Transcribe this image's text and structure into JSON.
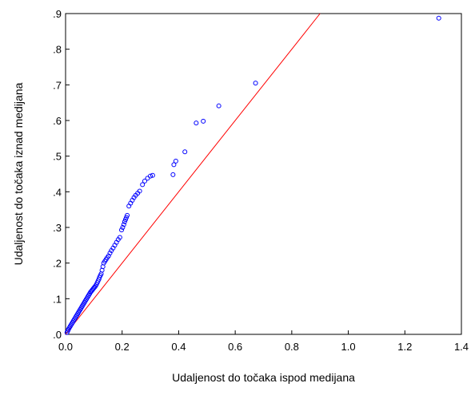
{
  "chart_data": {
    "type": "scatter",
    "title": "",
    "xlabel": "Udaljenost do točaka ispod medijana",
    "ylabel": "Udaljenost do točaka iznad medijana",
    "xlim": [
      0.0,
      1.4
    ],
    "ylim": [
      0.0,
      0.9
    ],
    "xticks": [
      {
        "value": 0.0,
        "label": "0.0"
      },
      {
        "value": 0.2,
        "label": "0.2"
      },
      {
        "value": 0.4,
        "label": "0.4"
      },
      {
        "value": 0.6,
        "label": "0.6"
      },
      {
        "value": 0.8,
        "label": "0.8"
      },
      {
        "value": 1.0,
        "label": "1.0"
      },
      {
        "value": 1.2,
        "label": "1.2"
      },
      {
        "value": 1.4,
        "label": "1.4"
      }
    ],
    "yticks": [
      {
        "value": 0.0,
        "label": ".0"
      },
      {
        "value": 0.1,
        "label": ".1"
      },
      {
        "value": 0.2,
        "label": ".2"
      },
      {
        "value": 0.3,
        "label": ".3"
      },
      {
        "value": 0.4,
        "label": ".4"
      },
      {
        "value": 0.5,
        "label": ".5"
      },
      {
        "value": 0.6,
        "label": ".6"
      },
      {
        "value": 0.7,
        "label": ".7"
      },
      {
        "value": 0.8,
        "label": ".8"
      },
      {
        "value": 0.9,
        "label": ".9"
      }
    ],
    "grid": false,
    "reference_line": {
      "from": [
        0.0,
        0.0
      ],
      "to": [
        0.9,
        0.9
      ],
      "color": "#ff0000"
    },
    "marker_color": "#0000ff",
    "points": [
      [
        0.005,
        0.005
      ],
      [
        0.008,
        0.01
      ],
      [
        0.01,
        0.014
      ],
      [
        0.013,
        0.018
      ],
      [
        0.016,
        0.022
      ],
      [
        0.019,
        0.026
      ],
      [
        0.022,
        0.03
      ],
      [
        0.025,
        0.034
      ],
      [
        0.028,
        0.038
      ],
      [
        0.031,
        0.042
      ],
      [
        0.034,
        0.046
      ],
      [
        0.037,
        0.05
      ],
      [
        0.04,
        0.054
      ],
      [
        0.043,
        0.058
      ],
      [
        0.046,
        0.062
      ],
      [
        0.049,
        0.066
      ],
      [
        0.052,
        0.07
      ],
      [
        0.055,
        0.074
      ],
      [
        0.058,
        0.078
      ],
      [
        0.061,
        0.082
      ],
      [
        0.064,
        0.086
      ],
      [
        0.067,
        0.09
      ],
      [
        0.07,
        0.094
      ],
      [
        0.073,
        0.098
      ],
      [
        0.076,
        0.102
      ],
      [
        0.079,
        0.106
      ],
      [
        0.082,
        0.11
      ],
      [
        0.085,
        0.114
      ],
      [
        0.088,
        0.118
      ],
      [
        0.091,
        0.121
      ],
      [
        0.094,
        0.124
      ],
      [
        0.097,
        0.127
      ],
      [
        0.1,
        0.13
      ],
      [
        0.103,
        0.133
      ],
      [
        0.106,
        0.136
      ],
      [
        0.109,
        0.14
      ],
      [
        0.112,
        0.145
      ],
      [
        0.115,
        0.15
      ],
      [
        0.118,
        0.155
      ],
      [
        0.12,
        0.16
      ],
      [
        0.123,
        0.165
      ],
      [
        0.126,
        0.17
      ],
      [
        0.129,
        0.18
      ],
      [
        0.132,
        0.19
      ],
      [
        0.135,
        0.2
      ],
      [
        0.139,
        0.205
      ],
      [
        0.143,
        0.21
      ],
      [
        0.147,
        0.215
      ],
      [
        0.152,
        0.22
      ],
      [
        0.157,
        0.228
      ],
      [
        0.162,
        0.235
      ],
      [
        0.168,
        0.242
      ],
      [
        0.174,
        0.25
      ],
      [
        0.18,
        0.258
      ],
      [
        0.186,
        0.266
      ],
      [
        0.192,
        0.272
      ],
      [
        0.198,
        0.293
      ],
      [
        0.202,
        0.3
      ],
      [
        0.206,
        0.308
      ],
      [
        0.209,
        0.316
      ],
      [
        0.212,
        0.322
      ],
      [
        0.215,
        0.328
      ],
      [
        0.218,
        0.334
      ],
      [
        0.224,
        0.36
      ],
      [
        0.23,
        0.368
      ],
      [
        0.236,
        0.376
      ],
      [
        0.242,
        0.384
      ],
      [
        0.248,
        0.39
      ],
      [
        0.255,
        0.396
      ],
      [
        0.262,
        0.402
      ],
      [
        0.272,
        0.42
      ],
      [
        0.28,
        0.43
      ],
      [
        0.29,
        0.438
      ],
      [
        0.3,
        0.444
      ],
      [
        0.308,
        0.446
      ],
      [
        0.38,
        0.448
      ],
      [
        0.383,
        0.476
      ],
      [
        0.39,
        0.486
      ],
      [
        0.422,
        0.512
      ],
      [
        0.462,
        0.593
      ],
      [
        0.487,
        0.598
      ],
      [
        0.542,
        0.641
      ],
      [
        0.672,
        0.705
      ],
      [
        1.32,
        0.887
      ]
    ]
  }
}
